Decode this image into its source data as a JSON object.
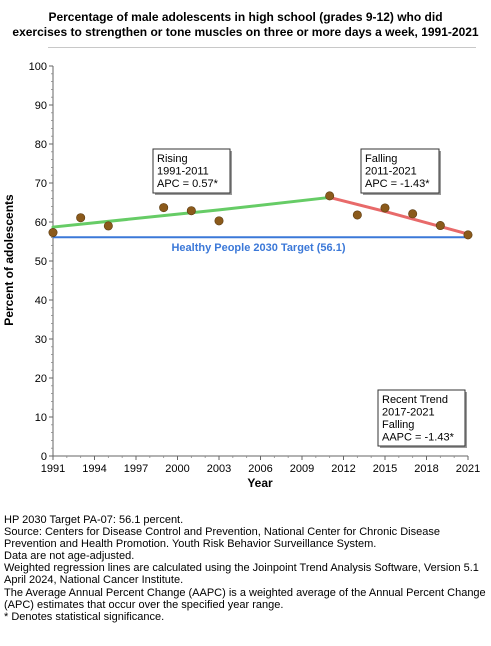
{
  "chart_data": {
    "type": "line",
    "title_lines": [
      "Percentage of male adolescents in high school (grades 9-12) who did",
      "exercises to strengthen or tone muscles on three or more days a week, 1991-2021"
    ],
    "xlabel": "Year",
    "ylabel": "Percent of adolescents",
    "xlim": [
      1991,
      2021
    ],
    "ylim": [
      0,
      100
    ],
    "x_ticks": [
      "1991",
      "1994",
      "1997",
      "2000",
      "2003",
      "2006",
      "2009",
      "2012",
      "2015",
      "2018",
      "2021"
    ],
    "y_ticks": [
      "0",
      "10",
      "20",
      "30",
      "40",
      "50",
      "60",
      "70",
      "80",
      "90",
      "100"
    ],
    "grid": false,
    "observed": {
      "x": [
        1991,
        1993,
        1995,
        1999,
        2001,
        2003,
        2011,
        2013,
        2015,
        2017,
        2019,
        2021
      ],
      "y": [
        57.3,
        61.1,
        59.0,
        63.7,
        62.9,
        60.3,
        66.7,
        61.8,
        63.6,
        62.1,
        59.1,
        56.7
      ],
      "color": "#8b5a1b"
    },
    "trend_segments": [
      {
        "x": [
          1991,
          2003,
          2011
        ],
        "y": [
          58.7,
          63.1,
          66.3
        ],
        "color": "#66cc66"
      },
      {
        "x": [
          2011,
          2015,
          2021
        ],
        "y": [
          66.3,
          62.7,
          56.9
        ],
        "color": "#e86a6a"
      }
    ],
    "target": {
      "value": 56.1,
      "label": "Healthy People 2030 Target (56.1)",
      "color": "#3b78d8"
    },
    "annotations": [
      {
        "lines": [
          "Rising",
          "1991-2011",
          "APC =  0.57*"
        ]
      },
      {
        "lines": [
          "Falling",
          "2011-2021",
          "APC = -1.43*"
        ]
      },
      {
        "lines": [
          "Recent Trend",
          "2017-2021",
          "Falling",
          "AAPC = -1.43*"
        ]
      }
    ]
  },
  "footnotes": [
    "HP 2030 Target PA-07: 56.1 percent.",
    "Source: Centers for Disease Control and Prevention, National Center for Chronic Disease Prevention and Health Promotion. Youth Risk Behavior Surveillance System.",
    "Data are not age-adjusted.",
    "Weighted regression lines are calculated using the Joinpoint Trend Analysis Software, Version 5.1 April 2024, National Cancer Institute.",
    "The Average Annual Percent Change (AAPC) is a weighted average of the Annual Percent Change (APC) estimates that occur over the specified year range.",
    "* Denotes statistical significance."
  ]
}
